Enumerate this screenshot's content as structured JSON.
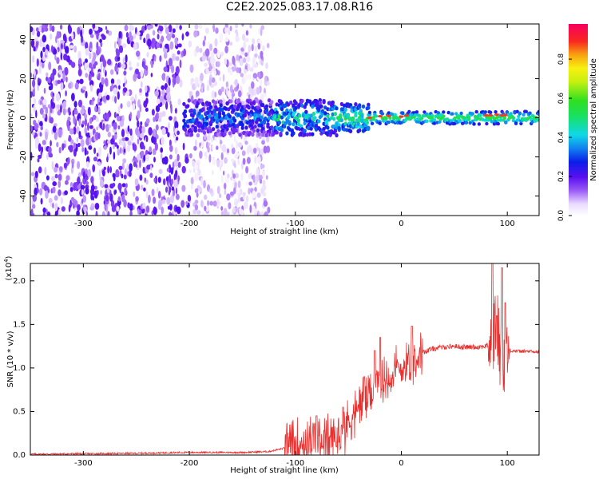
{
  "title": "C2E2.2025.083.17.08.R16",
  "colors": {
    "snr_line": "#e8312f",
    "spectrum_low": "#e8d4ff",
    "spectrum_mid": "#6a10f0"
  },
  "chart_data": [
    {
      "type": "heatmap",
      "xlabel": "Height of straight line (km)",
      "ylabel": "Frequency (Hz)",
      "xlim": [
        -350,
        130
      ],
      "ylim": [
        -50,
        48
      ],
      "xticks": [
        -300,
        -200,
        -100,
        0,
        100
      ],
      "yticks": [
        -40,
        -20,
        0,
        20,
        40
      ],
      "colorbar": {
        "label": "Normalized spectral amplitude",
        "range": [
          0,
          0.98
        ],
        "ticks": [
          0.0,
          0.2,
          0.4,
          0.6,
          0.8
        ]
      },
      "structure": {
        "broadband_noise_region_km": [
          -350,
          -125
        ],
        "dense_noise_region_km": [
          -350,
          -200
        ],
        "signal_center_hz": 0,
        "signal_emerges_at_km": -200,
        "max_amplitude_band_km": [
          -30,
          130
        ]
      }
    },
    {
      "type": "line",
      "xlabel": "Height of straight line (km)",
      "ylabel": "SNR (10 * v/v)",
      "scale_note": "(x10",
      "scale_exp": "4",
      "xlim": [
        -350,
        130
      ],
      "ylim": [
        0,
        2.2
      ],
      "xticks": [
        -300,
        -200,
        -100,
        0,
        100
      ],
      "yticks": [
        0.0,
        0.5,
        1.0,
        1.5,
        2.0
      ],
      "ytick_labels": [
        "0.0",
        "0.5",
        "1.0",
        "1.5",
        "2.0"
      ],
      "series": [
        {
          "x": [
            -350,
            -250,
            -200,
            -150,
            -125,
            -110,
            -100,
            -90,
            -80,
            -70,
            -60,
            -50,
            -40,
            -30,
            -20,
            -10,
            0,
            10,
            20,
            30,
            40,
            50,
            60,
            70,
            80,
            85,
            90,
            95,
            100,
            105,
            110,
            120,
            130
          ],
          "y": [
            0.01,
            0.02,
            0.03,
            0.03,
            0.04,
            0.08,
            0.12,
            0.16,
            0.18,
            0.15,
            0.2,
            0.38,
            0.55,
            0.7,
            0.82,
            0.92,
            1.0,
            1.1,
            1.18,
            1.22,
            1.24,
            1.25,
            1.24,
            1.24,
            1.25,
            1.3,
            1.5,
            1.1,
            1.2,
            1.2,
            1.19,
            1.19,
            1.18
          ],
          "peaks": [
            [
              -80,
              0.45
            ],
            [
              -55,
              0.55
            ],
            [
              -35,
              0.9
            ],
            [
              -25,
              1.2
            ],
            [
              -20,
              1.35
            ],
            [
              10,
              1.48
            ],
            [
              86,
              2.2
            ],
            [
              90,
              1.6
            ],
            [
              95,
              2.15
            ],
            [
              98,
              1.75
            ]
          ]
        }
      ]
    }
  ]
}
